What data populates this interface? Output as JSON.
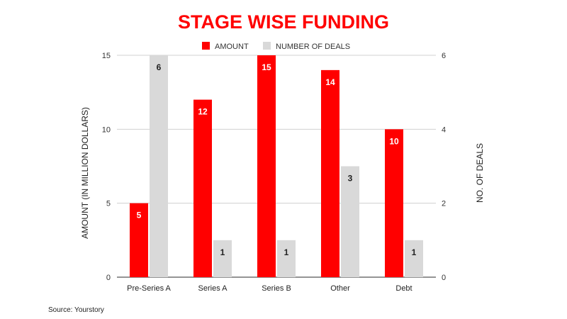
{
  "chart_data": {
    "type": "bar",
    "title": "STAGE WISE FUNDING",
    "categories": [
      "Pre-Series A",
      "Series A",
      "Series B",
      "Other",
      "Debt"
    ],
    "series": [
      {
        "name": "AMOUNT",
        "axis": "left",
        "color": "#ff0000",
        "values": [
          5,
          12,
          15,
          14,
          10
        ]
      },
      {
        "name": "NUMBER OF DEALS",
        "axis": "right",
        "color": "#d9d9d9",
        "values": [
          6,
          1,
          1,
          3,
          1
        ]
      }
    ],
    "ylabel": "AMOUNT (IN MILLION DOLLARS)",
    "ylim": [
      0,
      15
    ],
    "yticks": [
      0,
      5,
      10,
      15
    ],
    "y2label": "NO. OF DEALS",
    "y2lim": [
      0,
      6
    ],
    "y2ticks": [
      0,
      2,
      4,
      6
    ],
    "grid": true,
    "legend_position": "top-center",
    "title_color": "#ff0000"
  },
  "source": "Source: Yourstory"
}
